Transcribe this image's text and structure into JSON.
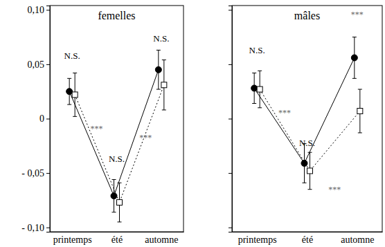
{
  "chart_data": [
    {
      "type": "line",
      "title": "femelles",
      "categories": [
        "printemps",
        "été",
        "automne"
      ],
      "ylim": [
        -0.104,
        0.104
      ],
      "yticks": [
        {
          "value": -0.1,
          "label": "- 0,10"
        },
        {
          "value": -0.05,
          "label": "- 0,05"
        },
        0,
        {
          "value": 0.05,
          "label": "0,05"
        },
        {
          "value": 0.1,
          "label": "0,10"
        }
      ],
      "tick_labels": true,
      "series": [
        {
          "color": "#000000",
          "marker": "circle",
          "line_style": "solid",
          "values": [
            0.025,
            -0.071,
            0.045
          ],
          "errors": [
            0.012,
            0.015,
            0.018
          ]
        },
        {
          "color": "#000000",
          "marker": "square",
          "line_style": "dotted",
          "values": [
            0.022,
            -0.077,
            0.031
          ],
          "errors": [
            0.02,
            0.018,
            0.023
          ]
        }
      ],
      "annotations": [
        {
          "text": "N.S.",
          "x": 0,
          "y": 0.055
        },
        {
          "text": "***",
          "x": 0.55,
          "y": -0.012
        },
        {
          "text": "N.S.",
          "x": 1,
          "y": -0.04
        },
        {
          "text": "***",
          "x": 1.65,
          "y": -0.02
        },
        {
          "text": "N.S.",
          "x": 2,
          "y": 0.071
        }
      ]
    },
    {
      "type": "line",
      "title": "mâles",
      "categories": [
        "printemps",
        "été",
        "automne"
      ],
      "ylim": [
        -0.104,
        0.104
      ],
      "yticks": [
        -0.1,
        -0.05,
        0,
        0.05,
        0.1
      ],
      "tick_labels": "x",
      "series": [
        {
          "color": "#000000",
          "marker": "circle",
          "line_style": "solid",
          "values": [
            0.028,
            -0.041,
            0.056
          ],
          "errors": [
            0.014,
            0.018,
            0.019
          ]
        },
        {
          "color": "#000000",
          "marker": "square",
          "line_style": "dotted",
          "values": [
            0.027,
            -0.048,
            0.007
          ],
          "errors": [
            0.017,
            0.017,
            0.02
          ]
        }
      ],
      "annotations": [
        {
          "text": "N.S.",
          "x": 0,
          "y": 0.06
        },
        {
          "text": "***",
          "x": 0.55,
          "y": 0.003
        },
        {
          "text": "N.S.",
          "x": 1,
          "y": -0.025
        },
        {
          "text": "***",
          "x": 2,
          "y": 0.093
        },
        {
          "text": "***",
          "x": 1.55,
          "y": -0.068
        }
      ]
    }
  ]
}
